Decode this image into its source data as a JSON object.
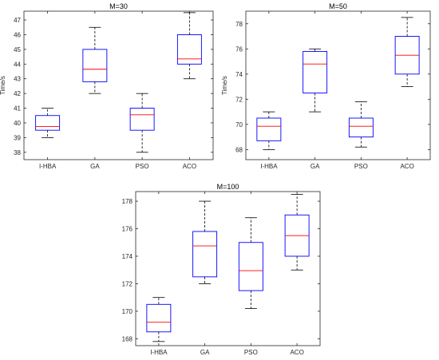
{
  "chart_data": [
    {
      "type": "box",
      "title": "M=30",
      "xlabel": "",
      "ylabel": "Time/s",
      "ylim": [
        37.5,
        47.6
      ],
      "yticks": [
        38,
        39,
        40,
        41,
        42,
        43,
        44,
        45,
        46,
        47
      ],
      "categories": [
        "I-HBA",
        "GA",
        "PSO",
        "ACO"
      ],
      "boxes": [
        {
          "min": 39.0,
          "q1": 39.5,
          "median": 39.75,
          "q3": 40.5,
          "max": 41.0
        },
        {
          "min": 42.0,
          "q1": 42.8,
          "median": 43.65,
          "q3": 45.0,
          "max": 46.5
        },
        {
          "min": 38.0,
          "q1": 39.5,
          "median": 40.55,
          "q3": 41.0,
          "max": 42.0
        },
        {
          "min": 43.0,
          "q1": 44.0,
          "median": 44.35,
          "q3": 46.0,
          "max": 47.5
        }
      ],
      "grid": false
    },
    {
      "type": "box",
      "title": "M=50",
      "xlabel": "",
      "ylabel": "Time/s",
      "ylim": [
        67.2,
        79.0
      ],
      "yticks": [
        68,
        70,
        72,
        74,
        76,
        78
      ],
      "categories": [
        "I-HBA",
        "GA",
        "PSO",
        "ACO"
      ],
      "boxes": [
        {
          "min": 68.0,
          "q1": 68.7,
          "median": 69.85,
          "q3": 70.5,
          "max": 71.0
        },
        {
          "min": 71.0,
          "q1": 72.5,
          "median": 74.8,
          "q3": 75.8,
          "max": 76.0
        },
        {
          "min": 68.2,
          "q1": 69.0,
          "median": 69.85,
          "q3": 70.5,
          "max": 71.8
        },
        {
          "min": 73.0,
          "q1": 74.0,
          "median": 75.5,
          "q3": 77.0,
          "max": 78.5
        }
      ],
      "grid": false
    },
    {
      "type": "box",
      "title": "M=100",
      "xlabel": "",
      "ylabel": "",
      "ylim": [
        167.5,
        178.7
      ],
      "yticks": [
        168,
        170,
        172,
        174,
        176,
        178
      ],
      "categories": [
        "I-HBA",
        "GA",
        "PSO",
        "ACO"
      ],
      "boxes": [
        {
          "min": 167.8,
          "q1": 168.5,
          "median": 169.2,
          "q3": 170.5,
          "max": 171.0
        },
        {
          "min": 172.0,
          "q1": 172.5,
          "median": 174.75,
          "q3": 175.8,
          "max": 178.0
        },
        {
          "min": 170.2,
          "q1": 171.5,
          "median": 172.95,
          "q3": 175.0,
          "max": 176.8
        },
        {
          "min": 173.0,
          "q1": 174.0,
          "median": 175.5,
          "q3": 177.0,
          "max": 178.5
        }
      ],
      "grid": false
    }
  ],
  "colors": {
    "box": "#0000ff",
    "median": "#ff0000",
    "whisker": "#000000",
    "axes": "#262626"
  }
}
